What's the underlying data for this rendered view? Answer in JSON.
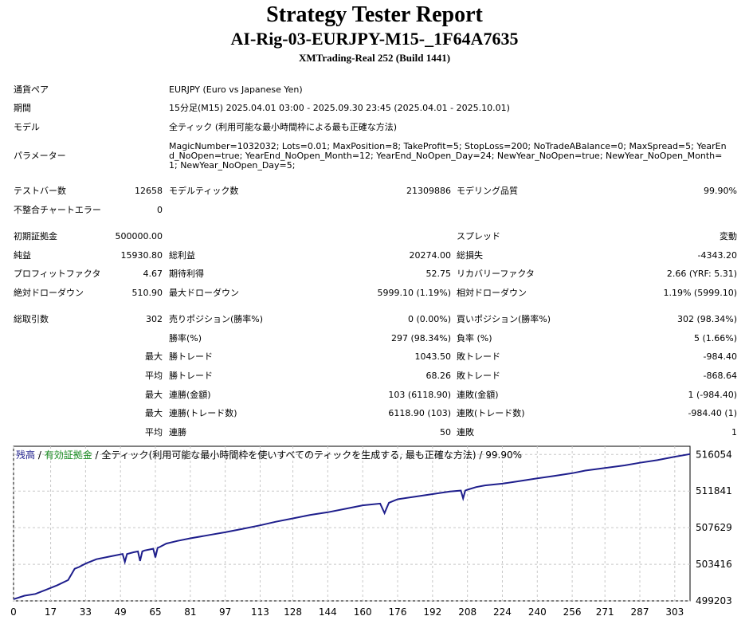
{
  "header": {
    "title": "Strategy Tester Report",
    "subtitle": "AI-Rig-03-EURJPY-M15-_1F64A7635",
    "server": "XMTrading-Real 252 (Build 1441)"
  },
  "settings": {
    "symbol_label": "通貨ペア",
    "symbol_value": "EURJPY (Euro vs Japanese Yen)",
    "period_label": "期間",
    "period_value": "15分足(M15) 2025.04.01 03:00 - 2025.09.30 23:45 (2025.04.01 - 2025.10.01)",
    "model_label": "モデル",
    "model_value": "全ティック (利用可能な最小時間枠による最も正確な方法)",
    "params_label": "パラメーター",
    "params_value": "MagicNumber=1032032; Lots=0.01; MaxPosition=8; TakeProfit=5; StopLoss=200; NoTradeABalance=0; MaxSpread=5; YearEnd_NoOpen=true; YearEnd_NoOpen_Month=12; YearEnd_NoOpen_Day=24; NewYear_NoOpen=true; NewYear_NoOpen_Month=1; NewYear_NoOpen_Day=5;"
  },
  "stats": {
    "bars_label": "テストバー数",
    "bars_value": "12658",
    "ticks_label": "モデルティック数",
    "ticks_value": "21309886",
    "quality_label": "モデリング品質",
    "quality_value": "99.90%",
    "mismatch_label": "不整合チャートエラー",
    "mismatch_value": "0",
    "deposit_label": "初期証拠金",
    "deposit_value": "500000.00",
    "spread_label": "スプレッド",
    "spread_value": "変動",
    "net_label": "純益",
    "net_value": "15930.80",
    "gross_profit_label": "総利益",
    "gross_profit_value": "20274.00",
    "gross_loss_label": "総損失",
    "gross_loss_value": "-4343.20",
    "pf_label": "プロフィットファクタ",
    "pf_value": "4.67",
    "payoff_label": "期待利得",
    "payoff_value": "52.75",
    "recovery_label": "リカバリーファクタ",
    "recovery_value": "2.66 (YRF: 5.31)",
    "abs_dd_label": "絶対ドローダウン",
    "abs_dd_value": "510.90",
    "max_dd_label": "最大ドローダウン",
    "max_dd_value": "5999.10 (1.19%)",
    "rel_dd_label": "相対ドローダウン",
    "rel_dd_value": "1.19% (5999.10)",
    "trades_label": "総取引数",
    "trades_value": "302",
    "short_label": "売りポジション(勝率%)",
    "short_value": "0 (0.00%)",
    "long_label": "買いポジション(勝率%)",
    "long_value": "302 (98.34%)",
    "win_pct_label": "勝率(%)",
    "win_pct_value": "297 (98.34%)",
    "loss_pct_label": "負率 (%)",
    "loss_pct_value": "5 (1.66%)",
    "max_label": "最大",
    "avg_label": "平均",
    "largest_win_label": "勝トレード",
    "largest_win_value": "1043.50",
    "largest_loss_label": "敗トレード",
    "largest_loss_value": "-984.40",
    "avg_win_label": "勝トレード",
    "avg_win_value": "68.26",
    "avg_loss_label": "敗トレード",
    "avg_loss_value": "-868.64",
    "max_cons_win_amt_label": "連勝(金額)",
    "max_cons_win_amt_value": "103 (6118.90)",
    "max_cons_loss_amt_label": "連敗(金額)",
    "max_cons_loss_amt_value": "1 (-984.40)",
    "max_cons_win_cnt_label": "連勝(トレード数)",
    "max_cons_win_cnt_value": "6118.90 (103)",
    "max_cons_loss_cnt_label": "連敗(トレード数)",
    "max_cons_loss_cnt_value": "-984.40 (1)",
    "avg_cons_win_label": "連勝",
    "avg_cons_win_value": "50",
    "avg_cons_loss_label": "連敗",
    "avg_cons_loss_value": "1"
  },
  "chart_caption": {
    "balance": "残高",
    "sep1": " / ",
    "equity": "有効証拠金",
    "rest": " / 全ティック(利用可能な最小時間枠を使いすべてのティックを生成する, 最も正確な方法) / 99.90%"
  },
  "chart_data": {
    "type": "line",
    "ylim": [
      499203,
      517000
    ],
    "xlim": [
      0,
      310
    ],
    "y_ticks": [
      499203,
      503416,
      507629,
      511841,
      516054
    ],
    "x_ticks": [
      0,
      17,
      33,
      49,
      65,
      81,
      97,
      113,
      128,
      144,
      160,
      176,
      192,
      208,
      224,
      240,
      256,
      271,
      287,
      303
    ],
    "grid": true,
    "line_color": "#1e1e8c",
    "series": [
      {
        "x": [
          0,
          5,
          10,
          15,
          20,
          25,
          28,
          30,
          33,
          38,
          44,
          50,
          51,
          52,
          55,
          57,
          58,
          59,
          60,
          64,
          65,
          66,
          67,
          70,
          75,
          81,
          90,
          97,
          105,
          113,
          120,
          128,
          136,
          144,
          152,
          160,
          168,
          170,
          171,
          172,
          173,
          176,
          184,
          192,
          200,
          205,
          206,
          207,
          208,
          212,
          216,
          224,
          232,
          240,
          248,
          256,
          262,
          271,
          280,
          287,
          295,
          303,
          310
        ],
        "y": [
          499400,
          499800,
          500000,
          500500,
          501000,
          501600,
          502900,
          503100,
          503500,
          504000,
          504300,
          504600,
          503700,
          504600,
          504800,
          504900,
          503800,
          504900,
          505000,
          505200,
          504200,
          505300,
          505400,
          505800,
          506100,
          506400,
          506800,
          507100,
          507500,
          507900,
          508300,
          508700,
          509100,
          509400,
          509800,
          510200,
          510400,
          509300,
          509900,
          510500,
          510600,
          510900,
          511200,
          511500,
          511800,
          511900,
          511000,
          511900,
          512000,
          512300,
          512500,
          512700,
          513000,
          513300,
          513600,
          513900,
          514200,
          514500,
          514800,
          515100,
          515400,
          515800,
          516100
        ]
      }
    ]
  }
}
